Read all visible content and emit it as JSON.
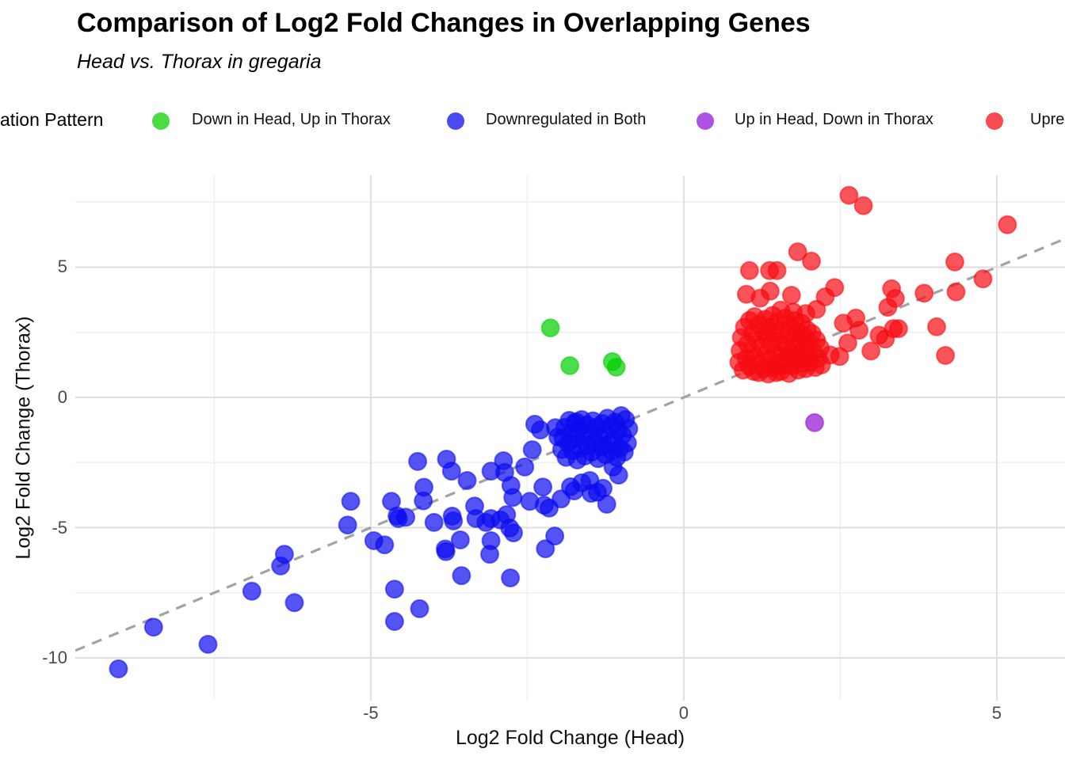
{
  "header": {
    "title": "Comparison of Log2 Fold Changes in Overlapping Genes",
    "subtitle": "Head vs. Thorax in gregaria"
  },
  "legend": {
    "title": "ation Pattern",
    "items": [
      {
        "label": "Down in Head, Up in Thorax",
        "color": "#4BDC44"
      },
      {
        "label": "Downregulated in Both",
        "color": "#4A4AF0"
      },
      {
        "label": "Up in Head, Down in Thorax",
        "color": "#AE52E2"
      },
      {
        "label": "Upre",
        "color": "#F94A50"
      }
    ]
  },
  "chart_data": {
    "type": "scatter",
    "title": "Comparison of Log2 Fold Changes in Overlapping Genes",
    "subtitle": "Head vs. Thorax in gregaria",
    "xlabel": "Log2 Fold Change (Head)",
    "ylabel": "Log2 Fold Change (Thorax)",
    "legend_position": "top",
    "grid": "on",
    "axes": {
      "xlim": [
        -9.72,
        6.09
      ],
      "ylim": [
        -11.64,
        8.51
      ],
      "x_major_ticks": [
        -5,
        0,
        5
      ],
      "x_minor_ticks": [
        -7.5,
        -2.5,
        2.5
      ],
      "y_major_ticks": [
        5,
        0,
        -5,
        -10
      ],
      "y_minor_ticks": [
        7.5,
        2.5,
        -2.5,
        -7.5
      ]
    },
    "identity_line": {
      "from": [
        -9.72,
        -9.72
      ],
      "to": [
        6.09,
        6.09
      ],
      "style": "dashed",
      "color": "#a3a3a3"
    },
    "point_radius": 11,
    "series": [
      {
        "name": "Downregulated in Both",
        "color": "#0B0BEF",
        "points": [
          [
            -9.03,
            -10.42
          ],
          [
            -8.47,
            -8.82
          ],
          [
            -7.6,
            -9.48
          ],
          [
            -6.9,
            -7.44
          ],
          [
            -6.22,
            -7.88
          ],
          [
            -6.38,
            -6.02
          ],
          [
            -6.44,
            -6.47
          ],
          [
            -5.37,
            -4.9
          ],
          [
            -5.32,
            -3.99
          ],
          [
            -4.25,
            -2.46
          ],
          [
            -3.79,
            -2.37
          ],
          [
            -3.71,
            -2.83
          ],
          [
            -4.15,
            -3.45
          ],
          [
            -4.16,
            -3.97
          ],
          [
            -4.67,
            -3.99
          ],
          [
            -4.56,
            -4.65
          ],
          [
            -4.58,
            -4.55
          ],
          [
            -4.44,
            -4.6
          ],
          [
            -4.95,
            -5.5
          ],
          [
            -4.78,
            -5.66
          ],
          [
            -3.81,
            -5.82
          ],
          [
            -4.62,
            -7.36
          ],
          [
            -4.62,
            -8.6
          ],
          [
            -4.22,
            -8.11
          ],
          [
            -3.99,
            -4.8
          ],
          [
            -3.7,
            -4.56
          ],
          [
            -3.68,
            -4.74
          ],
          [
            -3.34,
            -4.17
          ],
          [
            -3.08,
            -4.65
          ],
          [
            -2.93,
            -4.7
          ],
          [
            -3.16,
            -4.8
          ],
          [
            -3.08,
            -5.5
          ],
          [
            -3.1,
            -6.02
          ],
          [
            -2.78,
            -5.01
          ],
          [
            -2.72,
            -5.2
          ],
          [
            -2.21,
            -5.81
          ],
          [
            -2.06,
            -5.32
          ],
          [
            -3.55,
            -6.84
          ],
          [
            -2.77,
            -6.93
          ],
          [
            -3.8,
            -5.92
          ],
          [
            -3.57,
            -5.47
          ],
          [
            -3.46,
            -3.19
          ],
          [
            -3.32,
            -4.65
          ],
          [
            -2.38,
            -1.03
          ],
          [
            -2.29,
            -1.25
          ],
          [
            -2.05,
            -1.16
          ],
          [
            -2.01,
            -1.52
          ],
          [
            -1.72,
            -0.94
          ],
          [
            -2.42,
            -2.01
          ],
          [
            -2.54,
            -2.67
          ],
          [
            -2.88,
            -2.43
          ],
          [
            -3.08,
            -2.83
          ],
          [
            -2.86,
            -2.88
          ],
          [
            -2.76,
            -3.38
          ],
          [
            -2.73,
            -3.84
          ],
          [
            -2.46,
            -3.99
          ],
          [
            -2.25,
            -3.44
          ],
          [
            -2.15,
            -4.25
          ],
          [
            -1.96,
            -3.9
          ],
          [
            -1.81,
            -3.43
          ],
          [
            -1.63,
            -3.28
          ],
          [
            -1.48,
            -3.68
          ],
          [
            -1.29,
            -3.49
          ],
          [
            -1.23,
            -4.1
          ],
          [
            -1.13,
            -2.67
          ],
          [
            -1.04,
            -2.98
          ],
          [
            -2.83,
            -4.5
          ],
          [
            -1.75,
            -3.59
          ],
          [
            -1.5,
            -3.19
          ],
          [
            -1.38,
            -3.64
          ],
          [
            -2.23,
            -4.14
          ],
          [
            -0.88,
            -1.2
          ],
          [
            -0.9,
            -1.75
          ],
          [
            -0.93,
            -0.85
          ],
          [
            -0.95,
            -2.1
          ],
          [
            -0.98,
            -1.45
          ],
          [
            -1.0,
            -0.7
          ],
          [
            -1.02,
            -1.95
          ],
          [
            -1.05,
            -1.25
          ],
          [
            -1.07,
            -2.3
          ],
          [
            -1.1,
            -0.95
          ],
          [
            -1.12,
            -1.6
          ],
          [
            -1.15,
            -2.05
          ],
          [
            -1.17,
            -1.1
          ],
          [
            -1.2,
            -1.8
          ],
          [
            -1.22,
            -0.8
          ],
          [
            -1.25,
            -2.2
          ],
          [
            -1.27,
            -1.4
          ],
          [
            -1.3,
            -1.0
          ],
          [
            -1.32,
            -1.9
          ],
          [
            -1.35,
            -1.55
          ],
          [
            -1.37,
            -2.35
          ],
          [
            -1.4,
            -1.15
          ],
          [
            -1.42,
            -1.7
          ],
          [
            -1.45,
            -0.9
          ],
          [
            -1.47,
            -2.1
          ],
          [
            -1.5,
            -1.35
          ],
          [
            -1.53,
            -1.85
          ],
          [
            -1.55,
            -1.05
          ],
          [
            -1.58,
            -2.25
          ],
          [
            -1.6,
            -1.5
          ],
          [
            -1.63,
            -0.85
          ],
          [
            -1.65,
            -1.95
          ],
          [
            -1.68,
            -1.25
          ],
          [
            -1.7,
            -2.4
          ],
          [
            -1.73,
            -1.6
          ],
          [
            -1.75,
            -1.0
          ],
          [
            -1.78,
            -2.05
          ],
          [
            -1.8,
            -1.4
          ],
          [
            -1.83,
            -0.88
          ],
          [
            -1.85,
            -1.75
          ],
          [
            -1.88,
            -2.3
          ],
          [
            -1.9,
            -1.15
          ],
          [
            -1.93,
            -1.55
          ],
          [
            -1.95,
            -2.0
          ]
        ]
      },
      {
        "name": "Down in Head, Up in Thorax",
        "color": "#00CF00",
        "points": [
          [
            -2.13,
            2.67
          ],
          [
            -1.82,
            1.22
          ],
          [
            -1.14,
            1.37
          ],
          [
            -1.08,
            1.16
          ]
        ]
      },
      {
        "name": "Up in Head, Down in Thorax",
        "color": "#9411D6",
        "points": [
          [
            2.09,
            -0.97
          ]
        ]
      },
      {
        "name": "Upre",
        "color": "#F60B12",
        "points": [
          [
            2.64,
            7.76
          ],
          [
            2.87,
            7.36
          ],
          [
            5.17,
            6.63
          ],
          [
            1.82,
            5.59
          ],
          [
            2.04,
            5.23
          ],
          [
            4.33,
            5.2
          ],
          [
            1.05,
            4.87
          ],
          [
            1.37,
            4.87
          ],
          [
            1.49,
            4.87
          ],
          [
            4.78,
            4.55
          ],
          [
            2.41,
            4.22
          ],
          [
            3.32,
            4.17
          ],
          [
            1.38,
            4.08
          ],
          [
            4.35,
            4.05
          ],
          [
            3.84,
            4.0
          ],
          [
            1.0,
            3.96
          ],
          [
            1.72,
            3.92
          ],
          [
            2.26,
            3.86
          ],
          [
            3.38,
            3.8
          ],
          [
            1.22,
            3.81
          ],
          [
            3.26,
            3.46
          ],
          [
            4.04,
            2.71
          ],
          [
            3.43,
            2.64
          ],
          [
            3.35,
            2.64
          ],
          [
            2.8,
            2.58
          ],
          [
            3.12,
            2.39
          ],
          [
            3.22,
            2.24
          ],
          [
            2.62,
            2.09
          ],
          [
            2.99,
            1.78
          ],
          [
            4.18,
            1.61
          ],
          [
            2.49,
            1.57
          ],
          [
            2.34,
            1.63
          ],
          [
            0.88,
            1.35
          ],
          [
            0.9,
            1.8
          ],
          [
            0.92,
            2.3
          ],
          [
            0.95,
            1.05
          ],
          [
            0.97,
            2.7
          ],
          [
            1.0,
            1.5
          ],
          [
            1.02,
            2.05
          ],
          [
            1.05,
            1.2
          ],
          [
            1.05,
            2.95
          ],
          [
            1.08,
            1.75
          ],
          [
            1.1,
            2.45
          ],
          [
            1.12,
            1.0
          ],
          [
            1.13,
            3.1
          ],
          [
            1.15,
            1.55
          ],
          [
            1.17,
            2.2
          ],
          [
            1.2,
            0.95
          ],
          [
            1.2,
            2.8
          ],
          [
            1.22,
            1.3
          ],
          [
            1.25,
            1.95
          ],
          [
            1.27,
            2.55
          ],
          [
            1.28,
            1.1
          ],
          [
            1.3,
            3.0
          ],
          [
            1.32,
            1.65
          ],
          [
            1.33,
            2.3
          ],
          [
            1.35,
            0.9
          ],
          [
            1.37,
            2.7
          ],
          [
            1.38,
            1.45
          ],
          [
            1.4,
            2.05
          ],
          [
            1.42,
            3.15
          ],
          [
            1.43,
            1.15
          ],
          [
            1.45,
            2.45
          ],
          [
            1.47,
            1.7
          ],
          [
            1.48,
            0.95
          ],
          [
            1.5,
            2.9
          ],
          [
            1.52,
            1.35
          ],
          [
            1.53,
            2.15
          ],
          [
            1.55,
            1.0
          ],
          [
            1.57,
            2.6
          ],
          [
            1.58,
            1.8
          ],
          [
            1.6,
            1.25
          ],
          [
            1.62,
            3.05
          ],
          [
            1.63,
            2.0
          ],
          [
            1.65,
            1.5
          ],
          [
            1.67,
            2.4
          ],
          [
            1.68,
            0.92
          ],
          [
            1.7,
            2.75
          ],
          [
            1.72,
            1.65
          ],
          [
            1.73,
            1.2
          ],
          [
            1.75,
            2.25
          ],
          [
            1.77,
            1.9
          ],
          [
            1.78,
            2.95
          ],
          [
            1.8,
            1.4
          ],
          [
            1.82,
            2.55
          ],
          [
            1.83,
            1.05
          ],
          [
            1.85,
            2.1
          ],
          [
            1.87,
            1.7
          ],
          [
            1.88,
            2.85
          ],
          [
            1.9,
            1.3
          ],
          [
            1.92,
            2.35
          ],
          [
            1.93,
            1.85
          ],
          [
            1.95,
            1.1
          ],
          [
            1.97,
            2.6
          ],
          [
            1.98,
            1.55
          ],
          [
            2.0,
            2.15
          ],
          [
            2.02,
            1.35
          ],
          [
            2.05,
            2.45
          ],
          [
            2.07,
            1.75
          ],
          [
            2.1,
            1.15
          ],
          [
            2.12,
            2.2
          ],
          [
            2.15,
            1.5
          ],
          [
            2.18,
            1.9
          ],
          [
            2.2,
            1.25
          ],
          [
            1.55,
            3.35
          ],
          [
            1.75,
            3.28
          ],
          [
            1.95,
            3.22
          ],
          [
            2.12,
            3.38
          ],
          [
            2.55,
            2.85
          ],
          [
            2.75,
            3.05
          ]
        ]
      }
    ],
    "style": {
      "major_grid_color": "#dedede",
      "minor_grid_color": "#f0f0f0",
      "fill_opacity": 0.7,
      "tick_label_color": "#4a4a4a"
    }
  }
}
